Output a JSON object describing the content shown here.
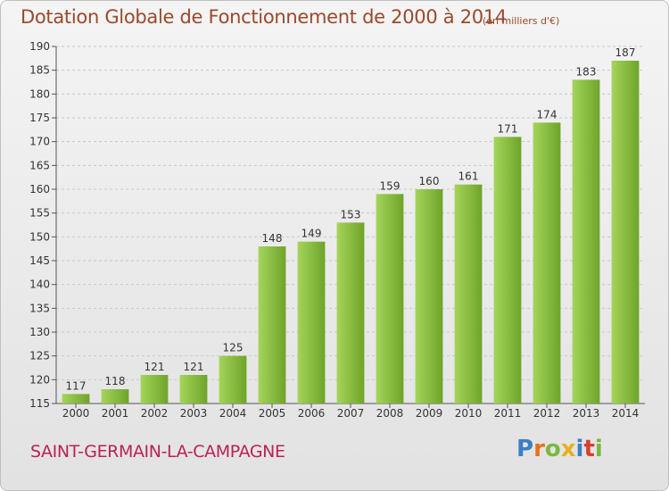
{
  "title": "Dotation Globale de Fonctionnement de 2000 à 2014",
  "subtitle": "(en milliers d'€)",
  "commune": "SAINT-GERMAIN-LA-CAMPAGNE",
  "logo": {
    "text": "Proxiti",
    "letter_colors": [
      "#3a7fc4",
      "#e4731c",
      "#7ab840",
      "#e8b020",
      "#3a7fc4",
      "#d6402f",
      "#7ab840"
    ]
  },
  "colors": {
    "bar_light": "#a5d45a",
    "bar_dark": "#6ea42a",
    "grid": "#c8c8c8",
    "axis": "#555555",
    "title": "#9a4a2b",
    "commune": "#b8225a"
  },
  "chart_data": {
    "type": "bar",
    "categories": [
      "2000",
      "2001",
      "2002",
      "2003",
      "2004",
      "2005",
      "2006",
      "2007",
      "2008",
      "2009",
      "2010",
      "2011",
      "2012",
      "2013",
      "2014"
    ],
    "values": [
      117,
      118,
      121,
      121,
      125,
      148,
      149,
      153,
      159,
      160,
      161,
      171,
      174,
      183,
      187
    ],
    "ylim": [
      115,
      190
    ],
    "yticks": [
      115,
      120,
      125,
      130,
      135,
      140,
      145,
      150,
      155,
      160,
      165,
      170,
      175,
      180,
      185,
      190
    ],
    "grid": true,
    "legend": "none",
    "data_labels": true
  }
}
